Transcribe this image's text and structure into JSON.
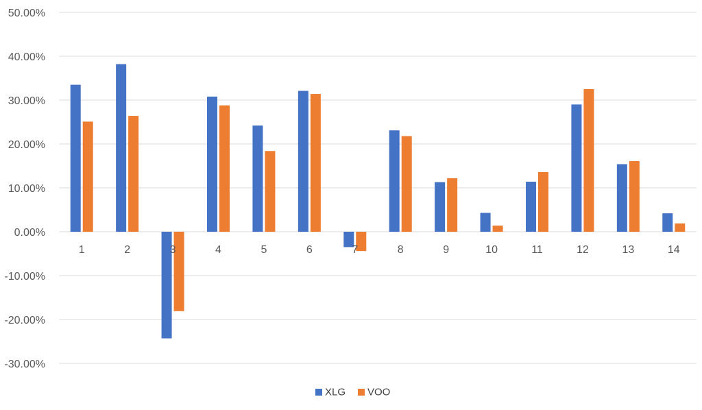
{
  "chart_data": {
    "type": "bar",
    "categories": [
      "1",
      "2",
      "3",
      "4",
      "5",
      "6",
      "7",
      "8",
      "9",
      "10",
      "11",
      "12",
      "13",
      "14"
    ],
    "series": [
      {
        "name": "XLG",
        "color": "#4472C4",
        "values": [
          0.335,
          0.382,
          -0.243,
          0.308,
          0.242,
          0.321,
          -0.035,
          0.231,
          0.113,
          0.043,
          0.114,
          0.29,
          0.154,
          0.042
        ]
      },
      {
        "name": "VOO",
        "color": "#ED7D31",
        "values": [
          0.251,
          0.264,
          -0.181,
          0.288,
          0.184,
          0.314,
          -0.044,
          0.218,
          0.122,
          0.014,
          0.136,
          0.325,
          0.161,
          0.019
        ]
      }
    ],
    "ylim": [
      -0.3,
      0.5
    ],
    "y_ticks": [
      0.5,
      0.4,
      0.3,
      0.2,
      0.1,
      0.0,
      -0.1,
      -0.2,
      -0.3
    ],
    "y_tick_labels": [
      "50.00%",
      "40.00%",
      "30.00%",
      "20.00%",
      "10.00%",
      "0.00%",
      "-10.00%",
      "-20.00%",
      "-30.00%"
    ],
    "grid": true,
    "legend_position": "bottom",
    "gridline_color": "#D9D9D9",
    "title": "",
    "xlabel": "",
    "ylabel": ""
  }
}
